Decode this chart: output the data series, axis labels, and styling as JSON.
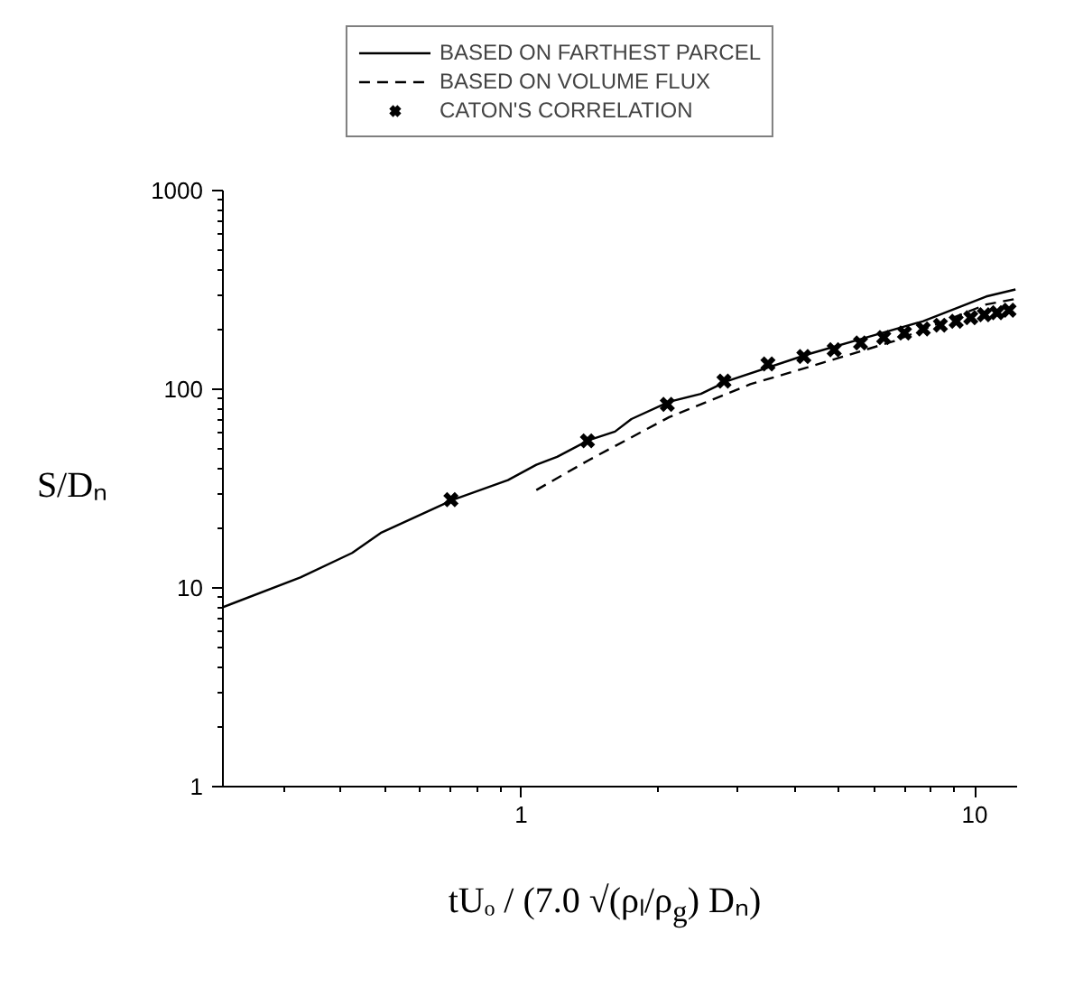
{
  "chart_data": {
    "type": "line",
    "xlabel": "tUₒ / (7.0 √(ρₗ/ρ$_{g}$) Dₙ)",
    "ylabel": "S/Dₙ",
    "log": "xy",
    "xlim": [
      0.22,
      12.4
    ],
    "ylim": [
      1,
      1000
    ],
    "xticks": [
      1,
      10
    ],
    "yticks": [
      1,
      10,
      100,
      1000
    ],
    "grid": false,
    "legend": "top",
    "series": [
      {
        "name": "BASED ON FARTHEST PARCEL",
        "color": "#000000",
        "line_style": "solid",
        "marker": "none",
        "x": [
          0.22,
          0.326,
          0.424,
          0.49,
          0.708,
          0.935,
          1.08,
          1.2,
          1.41,
          1.61,
          1.75,
          2.12,
          2.49,
          2.85,
          4.29,
          5.75,
          7.7,
          10.6,
          12.3
        ],
        "values": [
          8.0,
          11.3,
          15.0,
          18.9,
          27.8,
          34.9,
          41.7,
          45.7,
          55.4,
          61.2,
          70.8,
          86.5,
          94.8,
          110,
          150,
          182,
          220,
          293,
          318
        ]
      },
      {
        "name": "BASED ON VOLUME FLUX",
        "color": "#000000",
        "line_style": "dashed",
        "marker": "none",
        "x": [
          1.08,
          1.41,
          2.12,
          3.2,
          4.29,
          6.65,
          10.6,
          12.3
        ],
        "values": [
          31.1,
          44,
          72.4,
          106,
          129,
          175,
          267,
          285
        ]
      },
      {
        "name": "CATON'S CORRELATION",
        "type": "scatter",
        "color": "#000000",
        "marker": "cross",
        "x": [
          0.7,
          1.4,
          2.1,
          2.8,
          3.5,
          4.2,
          4.9,
          5.6,
          6.3,
          7.0,
          7.7,
          8.4,
          9.1,
          9.8,
          10.5,
          11.2,
          11.9
        ],
        "values": [
          27.8,
          55,
          84,
          110,
          134,
          146,
          158,
          171,
          182,
          192,
          201,
          210,
          220,
          229,
          237,
          243,
          250
        ]
      }
    ]
  }
}
